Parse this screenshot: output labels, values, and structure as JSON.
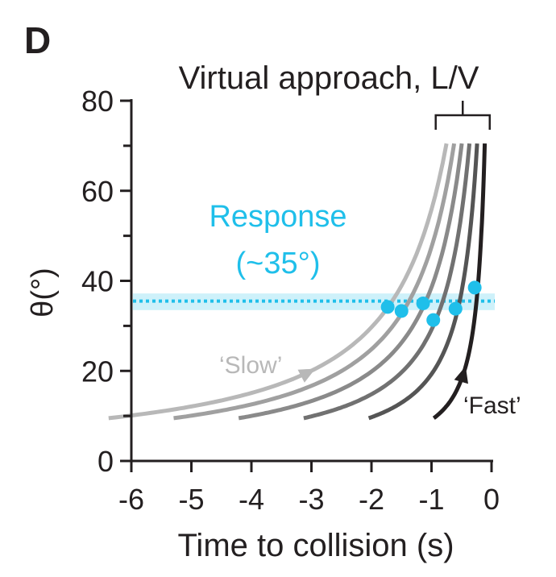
{
  "panel_label": "D",
  "chart_data": {
    "type": "line",
    "title": "Virtual approach, L/V",
    "xlabel": "Time to collision (s)",
    "ylabel": "θ(°)",
    "xlim": [
      -6,
      0
    ],
    "ylim": [
      0,
      80
    ],
    "xticks": [
      -6,
      -5,
      -4,
      -3,
      -2,
      -1,
      0
    ],
    "xtick_labels": [
      "-6",
      "-5",
      "-4",
      "-3",
      "-2",
      "-1",
      "0"
    ],
    "yticks": [
      0,
      20,
      40,
      60,
      80
    ],
    "ytick_labels": [
      "0",
      "20",
      "40",
      "60",
      "80"
    ],
    "y_minor_ticks": [
      10,
      30,
      50,
      70
    ],
    "grid": false,
    "curve_theta_range_deg": [
      9.5,
      70.5
    ],
    "series": [
      {
        "lv_s": 0.08,
        "color": "#231f20",
        "arrow": true
      },
      {
        "lv_s": 0.17,
        "color": "#555555"
      },
      {
        "lv_s": 0.26,
        "color": "#717171"
      },
      {
        "lv_s": 0.35,
        "color": "#8a8a8a"
      },
      {
        "lv_s": 0.44,
        "color": "#a0a0a0"
      },
      {
        "lv_s": 0.53,
        "color": "#b8b8b8",
        "arrow": true
      }
    ],
    "response_points": [
      {
        "x": -0.28,
        "y": 38.5
      },
      {
        "x": -0.6,
        "y": 33.8
      },
      {
        "x": -0.97,
        "y": 31.3
      },
      {
        "x": -1.14,
        "y": 35.0
      },
      {
        "x": -1.5,
        "y": 33.3
      },
      {
        "x": -1.73,
        "y": 34.2
      }
    ],
    "response_line": {
      "y": 35.5,
      "band": [
        33.5,
        37.2
      ]
    },
    "response_color": "#1fbfea",
    "bracket": {
      "x_from": -0.93,
      "x_to": -0.03
    },
    "annotations": {
      "response": [
        "Response",
        "(~35°)"
      ],
      "slow": "‘Slow’",
      "fast": "‘Fast’"
    }
  }
}
